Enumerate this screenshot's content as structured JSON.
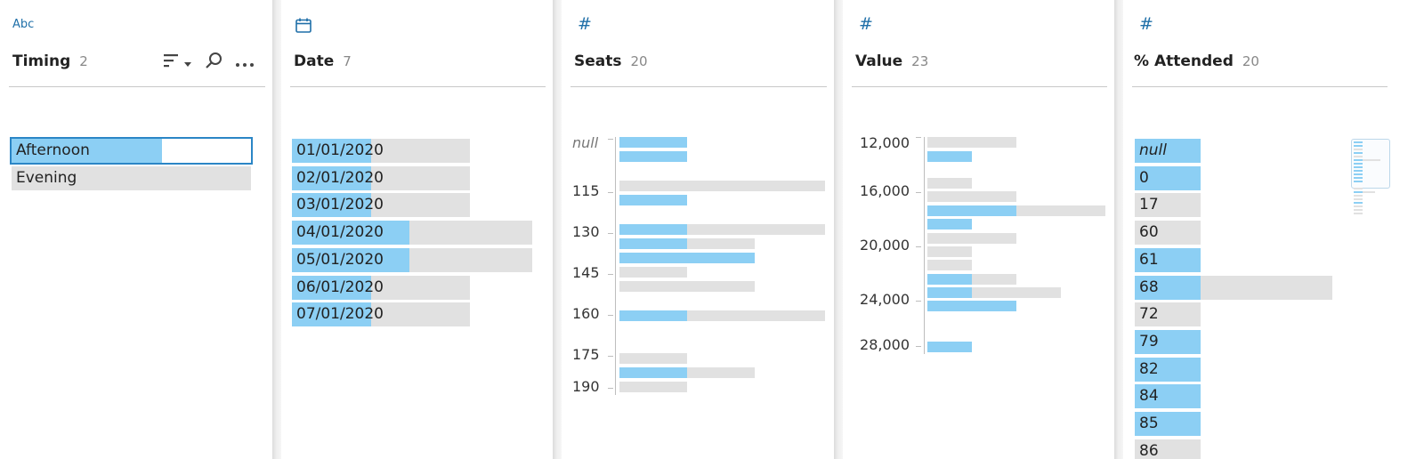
{
  "columns": [
    {
      "type_icon": "Abc",
      "name": "Timing",
      "count": "2",
      "rows": [
        {
          "label": "Afternoon",
          "fill": 0.63,
          "selected": true
        },
        {
          "label": "Evening",
          "fill": 0.0,
          "selected": false
        }
      ]
    },
    {
      "type_icon": "calendar-icon",
      "name": "Date",
      "count": "7",
      "rows": [
        {
          "label": "01/01/2020",
          "fill": 0.33,
          "total": 0.74
        },
        {
          "label": "02/01/2020",
          "fill": 0.33,
          "total": 0.74
        },
        {
          "label": "03/01/2020",
          "fill": 0.33,
          "total": 0.74
        },
        {
          "label": "04/01/2020",
          "fill": 0.49,
          "total": 1.0
        },
        {
          "label": "05/01/2020",
          "fill": 0.49,
          "total": 1.0
        },
        {
          "label": "06/01/2020",
          "fill": 0.33,
          "total": 0.74
        },
        {
          "label": "07/01/2020",
          "fill": 0.33,
          "total": 0.74
        }
      ]
    },
    {
      "type_icon": "#",
      "name": "Seats",
      "count": "20",
      "axis_labels": [
        "null",
        "115",
        "130",
        "145",
        "160",
        "175",
        "190"
      ],
      "bars": [
        {
          "fill": 0.33,
          "total": 0.33
        },
        {
          "fill": 0.33,
          "total": 0.33
        },
        {
          "fill": 0.0,
          "total": 1.0
        },
        {
          "fill": 0.33,
          "total": 0.33
        },
        {
          "fill": 0.33,
          "total": 1.0
        },
        {
          "fill": 0.33,
          "total": 0.66
        },
        {
          "fill": 0.66,
          "total": 0.66
        },
        {
          "fill": 0.0,
          "total": 0.33
        },
        {
          "fill": 0.0,
          "total": 0.66
        },
        {
          "fill": 0.33,
          "total": 1.0
        },
        {
          "fill": 0.0,
          "total": 0.33
        },
        {
          "fill": 0.33,
          "total": 0.66
        },
        {
          "fill": 0.0,
          "total": 0.33
        }
      ]
    },
    {
      "type_icon": "#",
      "name": "Value",
      "count": "23",
      "axis_labels": [
        "12,000",
        "16,000",
        "20,000",
        "24,000",
        "28,000"
      ],
      "bars": [
        {
          "fill": 0.0,
          "total": 0.5
        },
        {
          "fill": 0.25,
          "total": 0.25
        },
        {
          "fill": 0.0,
          "total": 0.25
        },
        {
          "fill": 0.0,
          "total": 0.5
        },
        {
          "fill": 0.5,
          "total": 1.0
        },
        {
          "fill": 0.25,
          "total": 0.25
        },
        {
          "fill": 0.0,
          "total": 0.5
        },
        {
          "fill": 0.0,
          "total": 0.25
        },
        {
          "fill": 0.0,
          "total": 0.25
        },
        {
          "fill": 0.25,
          "total": 0.5
        },
        {
          "fill": 0.25,
          "total": 0.75
        },
        {
          "fill": 0.5,
          "total": 0.5
        },
        {
          "fill": 0.25,
          "total": 0.25
        }
      ]
    },
    {
      "type_icon": "#",
      "name": "% Attended",
      "count": "20",
      "rows": [
        {
          "label": "null",
          "fill": 1.0,
          "total": 1.0,
          "is_null": true
        },
        {
          "label": "0",
          "fill": 1.0,
          "total": 1.0
        },
        {
          "label": "17",
          "fill": 0.0,
          "total": 1.0
        },
        {
          "label": "60",
          "fill": 0.0,
          "total": 1.0
        },
        {
          "label": "61",
          "fill": 1.0,
          "total": 1.0
        },
        {
          "label": "68",
          "fill": 1.0,
          "total": 3.0
        },
        {
          "label": "72",
          "fill": 0.0,
          "total": 1.0
        },
        {
          "label": "79",
          "fill": 1.0,
          "total": 1.0
        },
        {
          "label": "82",
          "fill": 1.0,
          "total": 1.0
        },
        {
          "label": "84",
          "fill": 1.0,
          "total": 1.0
        },
        {
          "label": "85",
          "fill": 1.0,
          "total": 1.0
        },
        {
          "label": "86",
          "fill": 0.0,
          "total": 1.0
        }
      ]
    }
  ],
  "colors": {
    "highlight": "#8ccff4",
    "background_bar": "#e1e1e1",
    "accent": "#1f6fa8",
    "selection_outline": "#2b86c6"
  },
  "toolbar_icons": [
    "sort-icon",
    "sort-dropdown-chevron-icon",
    "search-icon",
    "more-options-icon"
  ]
}
